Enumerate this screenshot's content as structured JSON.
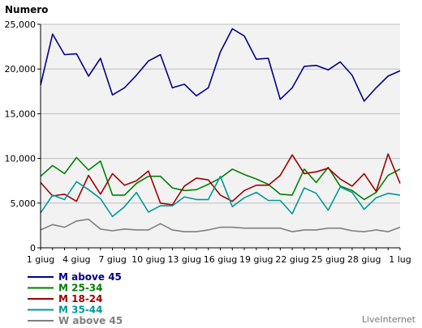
{
  "chart_data": {
    "type": "line",
    "ylabel": "Numero",
    "ylim": [
      0,
      25000
    ],
    "yticks": [
      "0",
      "5,000",
      "10,000",
      "15,000",
      "20,000",
      "25,000"
    ],
    "ytick_values": [
      0,
      5000,
      10000,
      15000,
      20000,
      25000
    ],
    "x": [
      "1 giug",
      "2 giug",
      "3 giug",
      "4 giug",
      "5 giug",
      "6 giug",
      "7 giug",
      "8 giug",
      "9 giug",
      "10 giug",
      "11 giug",
      "12 giug",
      "13 giug",
      "14 giug",
      "15 giug",
      "16 giug",
      "17 giug",
      "18 giug",
      "19 giug",
      "20 giug",
      "21 giug",
      "22 giug",
      "23 giug",
      "24 giug",
      "25 giug",
      "26 giug",
      "27 giug",
      "28 giug",
      "29 giug",
      "30 giug",
      "1 lug"
    ],
    "xtick_labels": [
      "1 giug",
      "4 giug",
      "7 giug",
      "10 giug",
      "13 giug",
      "16 giug",
      "19 giug",
      "22 giug",
      "25 giug",
      "28 giug",
      "1 lug"
    ],
    "grid": true,
    "legend_position": "bottom-left",
    "series": [
      {
        "name": "M above 45",
        "color": "#00008b",
        "values": [
          18200,
          23900,
          21600,
          21700,
          19200,
          21200,
          17100,
          17900,
          19300,
          20900,
          21600,
          17900,
          18300,
          17000,
          17900,
          21900,
          24500,
          23700,
          21100,
          21200,
          16600,
          17900,
          20300,
          20400,
          19900,
          20800,
          19300,
          16400,
          17900,
          19200,
          19800
        ]
      },
      {
        "name": "M 25-34",
        "color": "#008000",
        "values": [
          8000,
          9200,
          8300,
          10100,
          8700,
          9700,
          5900,
          5900,
          7200,
          8000,
          8000,
          6700,
          6400,
          6500,
          7100,
          7800,
          8800,
          8200,
          7700,
          7100,
          6000,
          5900,
          8800,
          7300,
          9000,
          6900,
          6400,
          5400,
          6200,
          8100,
          8800
        ]
      },
      {
        "name": "M 18-24",
        "color": "#a00000",
        "values": [
          7300,
          5800,
          6000,
          5200,
          8100,
          6000,
          8300,
          7000,
          7500,
          8600,
          5000,
          4800,
          6900,
          7800,
          7600,
          5900,
          5200,
          6400,
          7000,
          7000,
          8100,
          10400,
          8300,
          8500,
          8900,
          7700,
          6900,
          8300,
          6300,
          10500,
          7200
        ]
      },
      {
        "name": "M 35-44",
        "color": "#009999",
        "values": [
          3900,
          5900,
          5400,
          7400,
          6500,
          5500,
          3500,
          4600,
          6200,
          4000,
          4700,
          4700,
          5700,
          5400,
          5400,
          8000,
          4600,
          5600,
          6200,
          5300,
          5300,
          3800,
          6700,
          6100,
          4200,
          6800,
          6200,
          4300,
          5600,
          6100,
          5900
        ]
      },
      {
        "name": "W above 45",
        "color": "#808080",
        "values": [
          2000,
          2600,
          2300,
          3000,
          3200,
          2100,
          1900,
          2100,
          2000,
          2000,
          2700,
          2000,
          1800,
          1800,
          2000,
          2300,
          2300,
          2200,
          2200,
          2200,
          2200,
          1800,
          2000,
          2000,
          2200,
          2200,
          1900,
          1800,
          2000,
          1800,
          2300
        ]
      }
    ]
  },
  "footer": {
    "credit": "LiveInternet"
  }
}
